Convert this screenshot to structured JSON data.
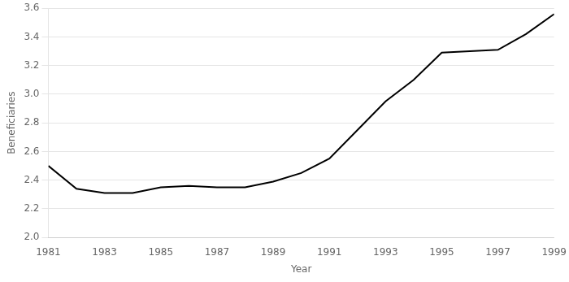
{
  "chart_data": {
    "type": "line",
    "xlabel": "Year",
    "ylabel": "Beneficiaries",
    "x": [
      1981,
      1982,
      1983,
      1984,
      1985,
      1986,
      1987,
      1988,
      1989,
      1990,
      1991,
      1992,
      1993,
      1994,
      1995,
      1996,
      1997,
      1998,
      1999
    ],
    "values": [
      2.5,
      2.34,
      2.31,
      2.31,
      2.35,
      2.36,
      2.35,
      2.35,
      2.39,
      2.45,
      2.55,
      2.75,
      2.95,
      3.1,
      3.29,
      3.3,
      3.31,
      3.42,
      3.56
    ],
    "color": "#000000",
    "xlim": [
      1981,
      1999
    ],
    "xticks": [
      1981,
      1983,
      1985,
      1987,
      1989,
      1991,
      1993,
      1995,
      1997,
      1999
    ],
    "ylim": [
      2.0,
      3.6
    ],
    "yticks": [
      {
        "value": 2.0,
        "label": "2.0"
      },
      2.2,
      2.4,
      2.6,
      2.8,
      {
        "value": 3.0,
        "label": "3.0"
      },
      3.2,
      3.4,
      3.6
    ],
    "grid": "y"
  }
}
